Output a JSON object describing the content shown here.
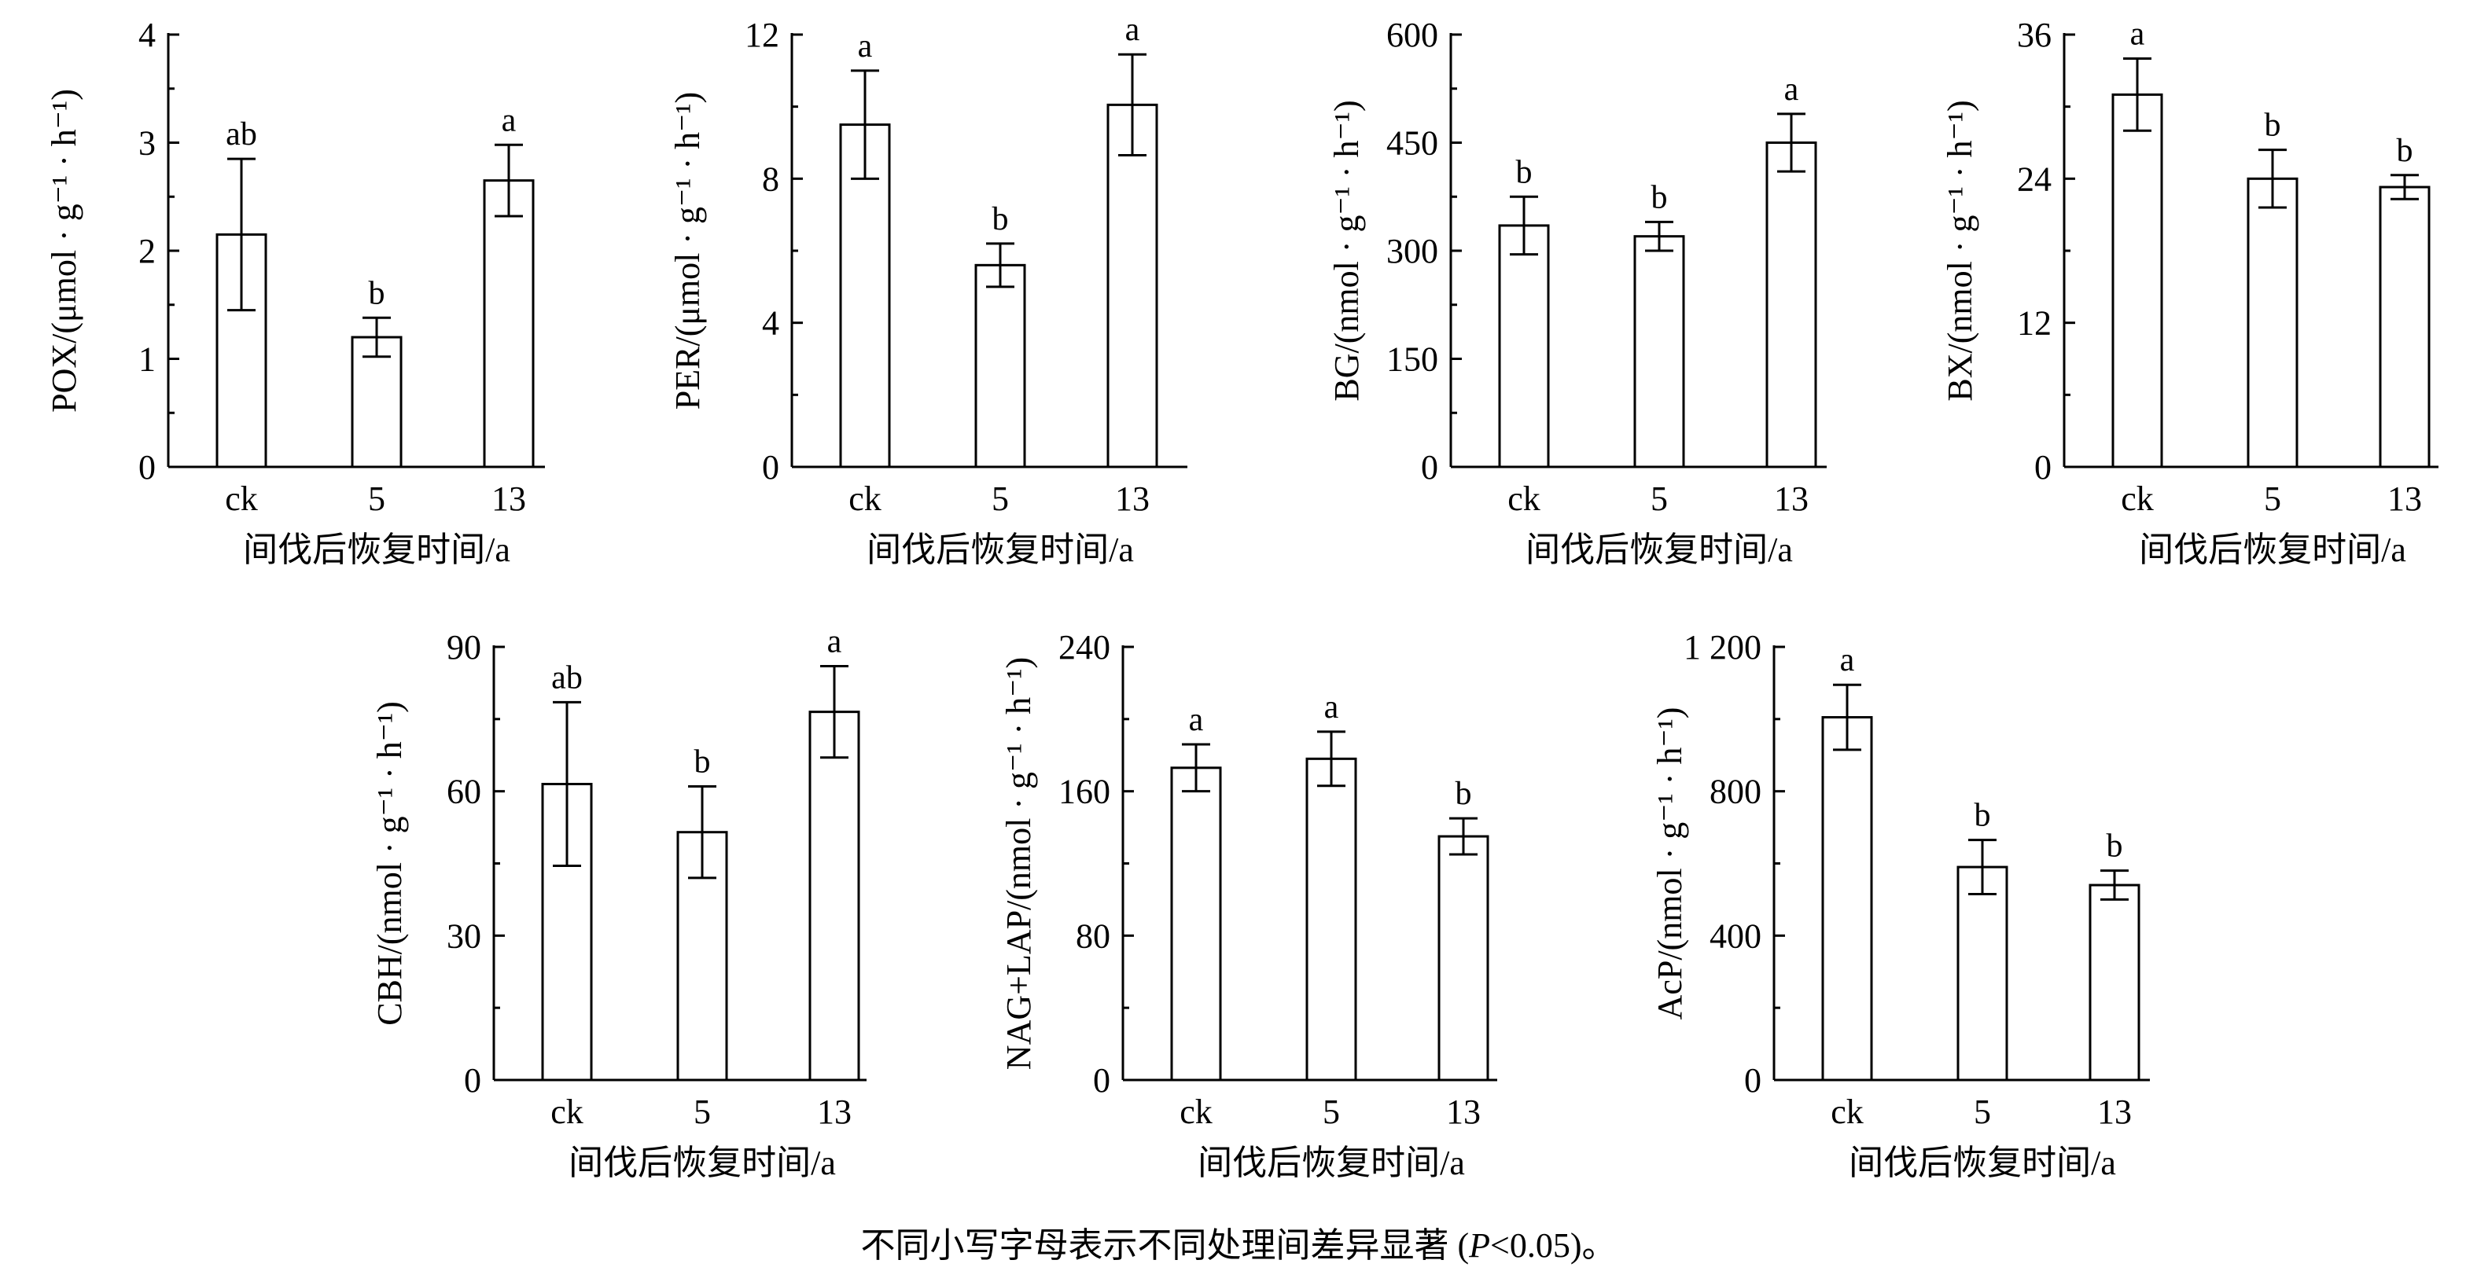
{
  "footnote": {
    "before": "不同小写字母表示不同处理间差异显著 (",
    "italic": "P",
    "after": "<0.05)。"
  },
  "chart_data": [
    {
      "type": "bar",
      "id": "pox",
      "ylabel": "POX/(μmol · g⁻¹ · h⁻¹)",
      "xlabel": "间伐后恢复时间/a",
      "categories": [
        "ck",
        "5",
        "13"
      ],
      "values": [
        2.15,
        1.2,
        2.65
      ],
      "errors": [
        0.7,
        0.18,
        0.33
      ],
      "significance": [
        "ab",
        "b",
        "a"
      ],
      "ylim": [
        0,
        4
      ],
      "yticks": [
        0,
        1,
        2,
        3,
        4
      ],
      "ytick_labels": [
        "0",
        "1",
        "2",
        "3",
        "4"
      ]
    },
    {
      "type": "bar",
      "id": "per",
      "ylabel": "PER/(μmol · g⁻¹ · h⁻¹)",
      "xlabel": "间伐后恢复时间/a",
      "categories": [
        "ck",
        "5",
        "13"
      ],
      "values": [
        9.5,
        5.6,
        10.05
      ],
      "errors": [
        1.5,
        0.6,
        1.4
      ],
      "significance": [
        "a",
        "b",
        "a"
      ],
      "ylim": [
        0,
        12
      ],
      "yticks": [
        0,
        4,
        8,
        12
      ],
      "ytick_labels": [
        "0",
        "4",
        "8",
        "12"
      ]
    },
    {
      "type": "bar",
      "id": "bg",
      "ylabel": "BG/(nmol · g⁻¹ · h⁻¹)",
      "xlabel": "间伐后恢复时间/a",
      "categories": [
        "ck",
        "5",
        "13"
      ],
      "values": [
        335,
        320,
        450
      ],
      "errors": [
        40,
        20,
        40
      ],
      "significance": [
        "b",
        "b",
        "a"
      ],
      "ylim": [
        0,
        600
      ],
      "yticks": [
        0,
        150,
        300,
        450,
        600
      ],
      "ytick_labels": [
        "0",
        "150",
        "300",
        "450",
        "600"
      ]
    },
    {
      "type": "bar",
      "id": "bx",
      "ylabel": "BX/(nmol · g⁻¹ · h⁻¹)",
      "xlabel": "间伐后恢复时间/a",
      "categories": [
        "ck",
        "5",
        "13"
      ],
      "values": [
        31,
        24,
        23.3
      ],
      "errors": [
        3,
        2.4,
        1.0
      ],
      "significance": [
        "a",
        "b",
        "b"
      ],
      "ylim": [
        0,
        36
      ],
      "yticks": [
        0,
        12,
        24,
        36
      ],
      "ytick_labels": [
        "0",
        "12",
        "24",
        "36"
      ]
    },
    {
      "type": "bar",
      "id": "cbh",
      "ylabel": "CBH/(nmol · g⁻¹ · h⁻¹)",
      "xlabel": "间伐后恢复时间/a",
      "categories": [
        "ck",
        "5",
        "13"
      ],
      "values": [
        61.5,
        51.5,
        76.5
      ],
      "errors": [
        17,
        9.5,
        9.5
      ],
      "significance": [
        "ab",
        "b",
        "a"
      ],
      "ylim": [
        0,
        90
      ],
      "yticks": [
        0,
        30,
        60,
        90
      ],
      "ytick_labels": [
        "0",
        "30",
        "60",
        "90"
      ]
    },
    {
      "type": "bar",
      "id": "nag-lap",
      "ylabel": "NAG+LAP/(nmol · g⁻¹ · h⁻¹)",
      "xlabel": "间伐后恢复时间/a",
      "categories": [
        "ck",
        "5",
        "13"
      ],
      "values": [
        173,
        178,
        135
      ],
      "errors": [
        13,
        15,
        10
      ],
      "significance": [
        "a",
        "a",
        "b"
      ],
      "ylim": [
        0,
        240
      ],
      "yticks": [
        0,
        80,
        160,
        240
      ],
      "ytick_labels": [
        "0",
        "80",
        "160",
        "240"
      ]
    },
    {
      "type": "bar",
      "id": "acp",
      "ylabel": "AcP/(nmol · g⁻¹ · h⁻¹)",
      "xlabel": "间伐后恢复时间/a",
      "categories": [
        "ck",
        "5",
        "13"
      ],
      "values": [
        1005,
        590,
        540
      ],
      "errors": [
        90,
        75,
        40
      ],
      "significance": [
        "a",
        "b",
        "b"
      ],
      "ylim": [
        0,
        1200
      ],
      "yticks": [
        0,
        400,
        800,
        1200
      ],
      "ytick_labels": [
        "0",
        "400",
        "800",
        "1 200"
      ]
    }
  ]
}
